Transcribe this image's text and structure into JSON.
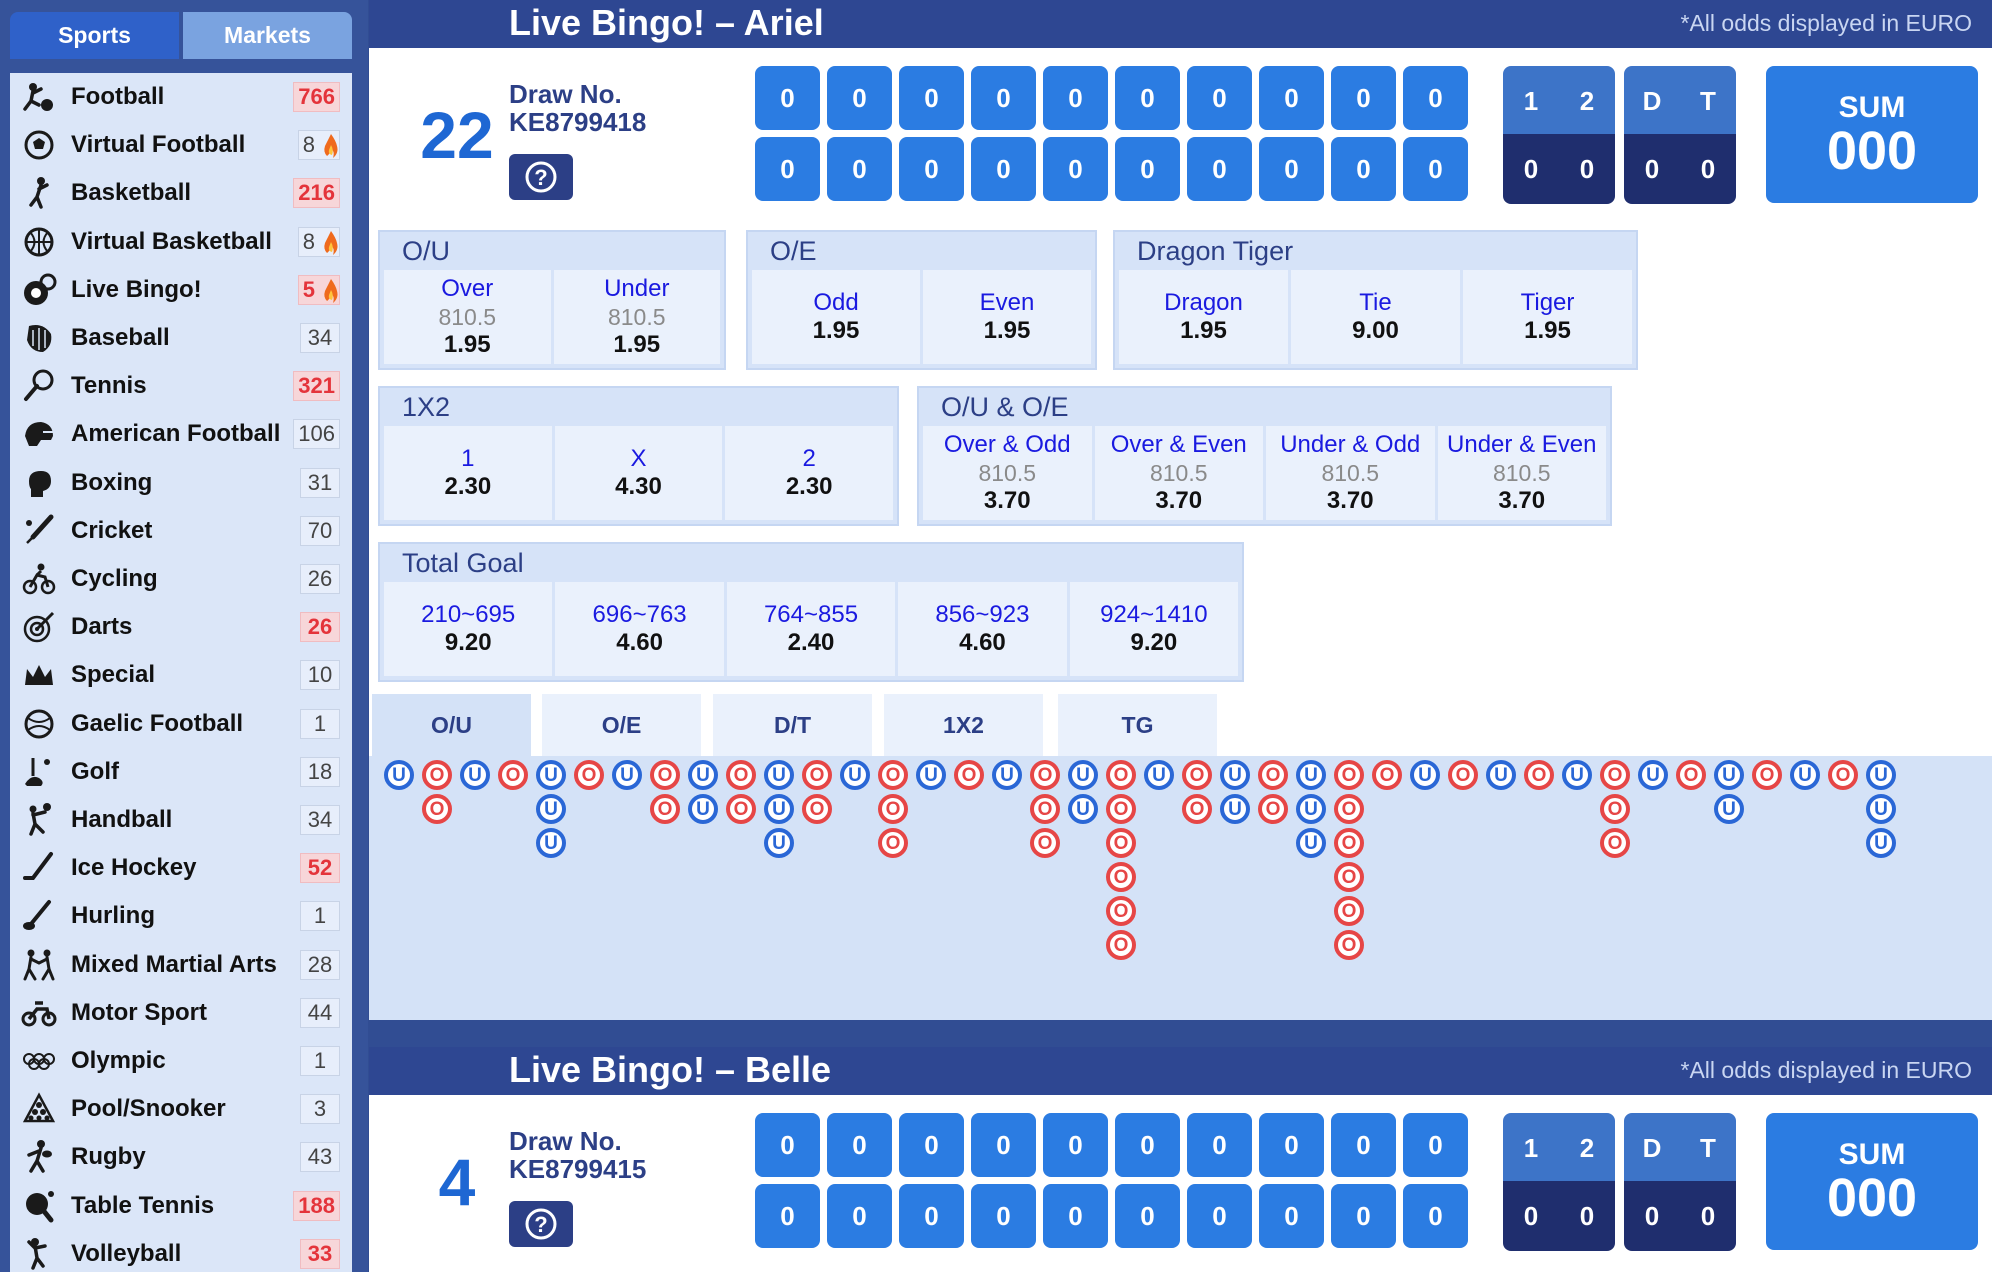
{
  "sidebar": {
    "tabs": [
      "Sports",
      "Markets"
    ],
    "sports": [
      {
        "name": "Football",
        "count": "766",
        "hot": true,
        "flame": false,
        "icon": "football-icon"
      },
      {
        "name": "Virtual Football",
        "count": "8",
        "hot": false,
        "flame": true,
        "icon": "virtual-football-icon"
      },
      {
        "name": "Basketball",
        "count": "216",
        "hot": true,
        "flame": false,
        "icon": "basketball-icon"
      },
      {
        "name": "Virtual Basketball",
        "count": "8",
        "hot": false,
        "flame": true,
        "icon": "virtual-basketball-icon"
      },
      {
        "name": "Live Bingo!",
        "count": "5",
        "hot": true,
        "flame": true,
        "icon": "bingo-icon"
      },
      {
        "name": "Baseball",
        "count": "34",
        "hot": false,
        "flame": false,
        "icon": "baseball-icon"
      },
      {
        "name": "Tennis",
        "count": "321",
        "hot": true,
        "flame": false,
        "icon": "tennis-icon"
      },
      {
        "name": "American Football",
        "count": "106",
        "hot": false,
        "flame": false,
        "icon": "american-football-icon"
      },
      {
        "name": "Boxing",
        "count": "31",
        "hot": false,
        "flame": false,
        "icon": "boxing-icon"
      },
      {
        "name": "Cricket",
        "count": "70",
        "hot": false,
        "flame": false,
        "icon": "cricket-icon"
      },
      {
        "name": "Cycling",
        "count": "26",
        "hot": false,
        "flame": false,
        "icon": "cycling-icon"
      },
      {
        "name": "Darts",
        "count": "26",
        "hot": true,
        "flame": false,
        "icon": "darts-icon"
      },
      {
        "name": "Special",
        "count": "10",
        "hot": false,
        "flame": false,
        "icon": "crown-icon"
      },
      {
        "name": "Gaelic Football",
        "count": "1",
        "hot": false,
        "flame": false,
        "icon": "gaelic-football-icon"
      },
      {
        "name": "Golf",
        "count": "18",
        "hot": false,
        "flame": false,
        "icon": "golf-icon"
      },
      {
        "name": "Handball",
        "count": "34",
        "hot": false,
        "flame": false,
        "icon": "handball-icon"
      },
      {
        "name": "Ice Hockey",
        "count": "52",
        "hot": true,
        "flame": false,
        "icon": "ice-hockey-icon"
      },
      {
        "name": "Hurling",
        "count": "1",
        "hot": false,
        "flame": false,
        "icon": "hurling-icon"
      },
      {
        "name": "Mixed Martial Arts",
        "count": "28",
        "hot": false,
        "flame": false,
        "icon": "mma-icon"
      },
      {
        "name": "Motor Sport",
        "count": "44",
        "hot": false,
        "flame": false,
        "icon": "motor-sport-icon"
      },
      {
        "name": "Olympic",
        "count": "1",
        "hot": false,
        "flame": false,
        "icon": "olympic-rings-icon"
      },
      {
        "name": "Pool/Snooker",
        "count": "3",
        "hot": false,
        "flame": false,
        "icon": "pool-icon"
      },
      {
        "name": "Rugby",
        "count": "43",
        "hot": false,
        "flame": false,
        "icon": "rugby-icon"
      },
      {
        "name": "Table Tennis",
        "count": "188",
        "hot": true,
        "flame": false,
        "icon": "table-tennis-icon"
      },
      {
        "name": "Volleyball",
        "count": "33",
        "hot": true,
        "flame": false,
        "icon": "volleyball-icon"
      }
    ]
  },
  "panels": [
    {
      "title": "Live Bingo!  –  Ariel",
      "note": "*All odds displayed in EURO",
      "draw_number": "22",
      "draw_label": "Draw No.",
      "draw_id": "KE8799418",
      "balls": [
        [
          "0",
          "0",
          "0",
          "0",
          "0",
          "0",
          "0",
          "0",
          "0",
          "0"
        ],
        [
          "0",
          "0",
          "0",
          "0",
          "0",
          "0",
          "0",
          "0",
          "0",
          "0"
        ]
      ],
      "stats_headers": [
        "1",
        "2",
        "D",
        "T"
      ],
      "stats_values": [
        "0",
        "0",
        "0",
        "0"
      ],
      "sum_label": "SUM",
      "sum_value": "000"
    },
    {
      "title": "Live Bingo!  –  Belle",
      "note": "*All odds displayed in EURO",
      "draw_number": "4",
      "draw_label": "Draw No.",
      "draw_id": "KE8799415",
      "balls": [
        [
          "0",
          "0",
          "0",
          "0",
          "0",
          "0",
          "0",
          "0",
          "0",
          "0"
        ],
        [
          "0",
          "0",
          "0",
          "0",
          "0",
          "0",
          "0",
          "0",
          "0",
          "0"
        ]
      ],
      "stats_headers": [
        "1",
        "2",
        "D",
        "T"
      ],
      "stats_values": [
        "0",
        "0",
        "0",
        "0"
      ],
      "sum_label": "SUM",
      "sum_value": "000"
    }
  ],
  "markets": [
    {
      "title": "O/U",
      "cells": [
        {
          "label": "Over",
          "line": "810.5",
          "odds": "1.95"
        },
        {
          "label": "Under",
          "line": "810.5",
          "odds": "1.95"
        }
      ]
    },
    {
      "title": "O/E",
      "cells": [
        {
          "label": "Odd",
          "line": "",
          "odds": "1.95"
        },
        {
          "label": "Even",
          "line": "",
          "odds": "1.95"
        }
      ]
    },
    {
      "title": "Dragon Tiger",
      "cells": [
        {
          "label": "Dragon",
          "line": "",
          "odds": "1.95"
        },
        {
          "label": "Tie",
          "line": "",
          "odds": "9.00"
        },
        {
          "label": "Tiger",
          "line": "",
          "odds": "1.95"
        }
      ]
    },
    {
      "title": "1X2",
      "cells": [
        {
          "label": "1",
          "line": "",
          "odds": "2.30"
        },
        {
          "label": "X",
          "line": "",
          "odds": "4.30"
        },
        {
          "label": "2",
          "line": "",
          "odds": "2.30"
        }
      ]
    },
    {
      "title": "O/U & O/E",
      "cells": [
        {
          "label": "Over & Odd",
          "line": "810.5",
          "odds": "3.70"
        },
        {
          "label": "Over & Even",
          "line": "810.5",
          "odds": "3.70"
        },
        {
          "label": "Under & Odd",
          "line": "810.5",
          "odds": "3.70"
        },
        {
          "label": "Under & Even",
          "line": "810.5",
          "odds": "3.70"
        }
      ]
    },
    {
      "title": "Total Goal",
      "cells": [
        {
          "label": "210~695",
          "line": "",
          "odds": "9.20"
        },
        {
          "label": "696~763",
          "line": "",
          "odds": "4.60"
        },
        {
          "label": "764~855",
          "line": "",
          "odds": "2.40"
        },
        {
          "label": "856~923",
          "line": "",
          "odds": "4.60"
        },
        {
          "label": "924~1410",
          "line": "",
          "odds": "9.20"
        }
      ]
    }
  ],
  "trend_tabs": [
    "O/U",
    "O/E",
    "D/T",
    "1X2",
    "TG"
  ],
  "trend_columns": [
    "U",
    "OO",
    "U",
    "O",
    "UUU",
    "O",
    "U",
    "OO",
    "UU",
    "OO",
    "UUU",
    "OO",
    "U",
    "OOO",
    "U",
    "O",
    "U",
    "OOO",
    "UU",
    "OOOOOO",
    "U",
    "OO",
    "UU",
    "OO",
    "UUU",
    "OOOOOO",
    "O",
    "U",
    "O",
    "U",
    "O",
    "U",
    "OOO",
    "U",
    "O",
    "UU",
    "O",
    "U",
    "O",
    "UUU"
  ],
  "colors": {
    "header": "#2e4792",
    "ball": "#2b7ce2",
    "sidebar_bg": "#dbe6f8",
    "hot_count": "#e4343b",
    "under_bead": "#2a67d6",
    "over_bead": "#e64646"
  }
}
